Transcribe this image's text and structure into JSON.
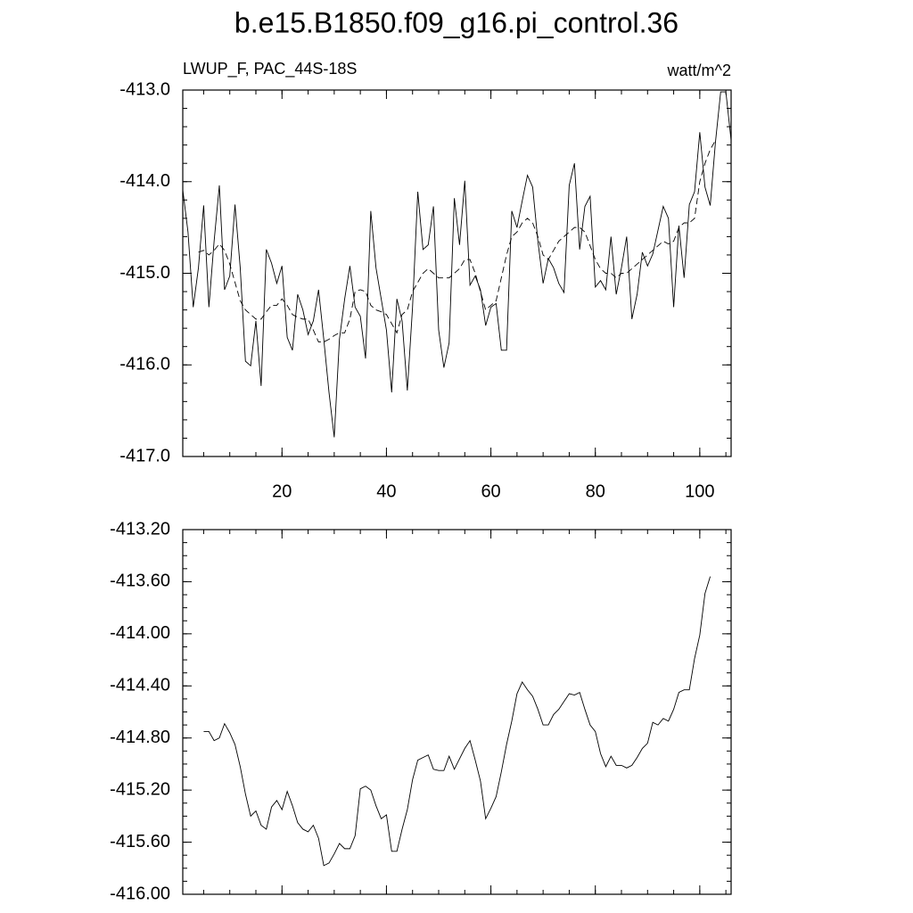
{
  "chart_data": [
    {
      "type": "line",
      "title": "b.e15.B1850.f09_g16.pi_control.36",
      "left_label": "LWUP_F, PAC_44S-18S",
      "right_label": "watt/m^2",
      "x": [
        1,
        2,
        3,
        4,
        5,
        6,
        7,
        8,
        9,
        10,
        11,
        12,
        13,
        14,
        15,
        16,
        17,
        18,
        19,
        20,
        21,
        22,
        23,
        24,
        25,
        26,
        27,
        28,
        29,
        30,
        31,
        32,
        33,
        34,
        35,
        36,
        37,
        38,
        39,
        40,
        41,
        42,
        43,
        44,
        45,
        46,
        47,
        48,
        49,
        50,
        51,
        52,
        53,
        54,
        55,
        56,
        57,
        58,
        59,
        60,
        61,
        62,
        63,
        64,
        65,
        66,
        67,
        68,
        69,
        70,
        71,
        72,
        73,
        74,
        75,
        76,
        77,
        78,
        79,
        80,
        81,
        82,
        83,
        84,
        85,
        86,
        87,
        88,
        89,
        90,
        91,
        92,
        93,
        94,
        95,
        96,
        97,
        98,
        99,
        100,
        101,
        102,
        103,
        104,
        105,
        106
      ],
      "series": [
        {
          "style": "solid",
          "color": "#000000",
          "values": [
            -414.09,
            -414.55,
            -415.37,
            -414.94,
            -414.26,
            -415.37,
            -414.65,
            -414.04,
            -415.18,
            -415.03,
            -414.25,
            -414.94,
            -415.96,
            -416.01,
            -415.52,
            -416.23,
            -414.74,
            -414.89,
            -415.11,
            -414.92,
            -415.7,
            -415.84,
            -415.23,
            -415.4,
            -415.67,
            -415.52,
            -415.18,
            -415.72,
            -416.3,
            -416.79,
            -415.72,
            -415.28,
            -414.92,
            -415.37,
            -415.47,
            -415.93,
            -414.32,
            -414.94,
            -415.28,
            -415.62,
            -416.3,
            -415.28,
            -415.52,
            -416.28,
            -415.37,
            -414.11,
            -414.74,
            -414.69,
            -414.27,
            -415.62,
            -416.03,
            -415.76,
            -414.18,
            -414.69,
            -413.99,
            -415.13,
            -415.03,
            -415.18,
            -415.57,
            -415.37,
            -415.33,
            -415.84,
            -415.84,
            -414.32,
            -414.5,
            -414.21,
            -413.93,
            -414.06,
            -414.65,
            -415.11,
            -414.84,
            -414.94,
            -415.11,
            -415.21,
            -414.04,
            -413.8,
            -414.74,
            -414.27,
            -414.16,
            -415.15,
            -415.08,
            -415.18,
            -414.6,
            -415.23,
            -414.94,
            -414.6,
            -415.5,
            -415.23,
            -414.77,
            -414.92,
            -414.79,
            -414.53,
            -414.27,
            -414.4,
            -415.37,
            -414.48,
            -415.05,
            -414.25,
            -414.11,
            -413.46,
            -414.06,
            -414.26,
            -413.57,
            -413.02,
            -413.02,
            -413.55
          ]
        },
        {
          "style": "dashed",
          "color": "#000000",
          "values": [
            null,
            null,
            null,
            -414.77,
            -414.75,
            -414.8,
            -414.75,
            -414.68,
            -414.75,
            -414.9,
            -415.1,
            -415.3,
            -415.4,
            -415.45,
            -415.5,
            -415.5,
            -415.42,
            -415.35,
            -415.35,
            -415.28,
            -415.35,
            -415.45,
            -415.48,
            -415.5,
            -415.5,
            -415.62,
            -415.75,
            -415.75,
            -415.72,
            -415.68,
            -415.65,
            -415.65,
            -415.5,
            -415.2,
            -415.18,
            -415.2,
            -415.35,
            -415.4,
            -415.42,
            -415.45,
            -415.55,
            -415.65,
            -415.45,
            -415.4,
            -415.2,
            -415.1,
            -415.0,
            -414.95,
            -415.0,
            -415.05,
            -415.05,
            -415.05,
            -415.0,
            -414.95,
            -414.85,
            -414.85,
            -415.0,
            -415.2,
            -415.4,
            -415.35,
            -415.3,
            -415.05,
            -414.8,
            -414.6,
            -414.55,
            -414.45,
            -414.4,
            -414.45,
            -414.6,
            -414.8,
            -414.85,
            -414.75,
            -414.65,
            -414.6,
            -414.55,
            -414.5,
            -414.5,
            -414.55,
            -414.7,
            -414.85,
            -414.95,
            -415.0,
            -415.0,
            -415.05,
            -415.0,
            -415.0,
            -414.95,
            -414.9,
            -414.85,
            -414.8,
            -414.75,
            -414.7,
            -414.65,
            -414.68,
            -414.65,
            -414.5,
            -414.45,
            -414.45,
            -414.4,
            -414.0,
            -413.8,
            -413.65,
            -413.55,
            null,
            null,
            null
          ]
        }
      ],
      "xlim": [
        1,
        106
      ],
      "xticks": [
        20,
        40,
        60,
        80,
        100
      ],
      "xtick_labels": true,
      "xminor_step": 5,
      "ylim": [
        -417,
        -413
      ],
      "yticks": [
        {
          "value": -413,
          "label": "-413.0"
        },
        {
          "value": -414,
          "label": "-414.0"
        },
        {
          "value": -415,
          "label": "-415.0"
        },
        {
          "value": -416,
          "label": "-416.0"
        },
        {
          "value": -417,
          "label": "-417.0"
        }
      ],
      "yminor_step": 0.2
    },
    {
      "type": "line",
      "x": [
        1,
        2,
        3,
        4,
        5,
        6,
        7,
        8,
        9,
        10,
        11,
        12,
        13,
        14,
        15,
        16,
        17,
        18,
        19,
        20,
        21,
        22,
        23,
        24,
        25,
        26,
        27,
        28,
        29,
        30,
        31,
        32,
        33,
        34,
        35,
        36,
        37,
        38,
        39,
        40,
        41,
        42,
        43,
        44,
        45,
        46,
        47,
        48,
        49,
        50,
        51,
        52,
        53,
        54,
        55,
        56,
        57,
        58,
        59,
        60,
        61,
        62,
        63,
        64,
        65,
        66,
        67,
        68,
        69,
        70,
        71,
        72,
        73,
        74,
        75,
        76,
        77,
        78,
        79,
        80,
        81,
        82,
        83,
        84,
        85,
        86,
        87,
        88,
        89,
        90,
        91,
        92,
        93,
        94,
        95,
        96,
        97,
        98,
        99,
        100,
        101,
        102,
        103,
        104,
        105,
        106
      ],
      "series": [
        {
          "style": "solid",
          "color": "#000000",
          "values": [
            null,
            null,
            null,
            null,
            -414.75,
            -414.75,
            -414.82,
            -414.8,
            -414.69,
            -414.76,
            -414.85,
            -415.02,
            -415.23,
            -415.4,
            -415.36,
            -415.47,
            -415.5,
            -415.33,
            -415.28,
            -415.35,
            -415.21,
            -415.32,
            -415.45,
            -415.5,
            -415.52,
            -415.47,
            -415.57,
            -415.78,
            -415.76,
            -415.69,
            -415.61,
            -415.65,
            -415.65,
            -415.55,
            -415.19,
            -415.17,
            -415.2,
            -415.32,
            -415.42,
            -415.39,
            -415.67,
            -415.67,
            -415.5,
            -415.35,
            -415.12,
            -414.97,
            -414.95,
            -414.93,
            -415.04,
            -415.05,
            -415.05,
            -414.94,
            -415.04,
            -414.96,
            -414.88,
            -414.82,
            -414.97,
            -415.13,
            -415.42,
            -415.34,
            -415.25,
            -415.06,
            -414.85,
            -414.67,
            -414.46,
            -414.37,
            -414.43,
            -414.48,
            -414.58,
            -414.7,
            -414.7,
            -414.62,
            -414.58,
            -414.52,
            -414.46,
            -414.47,
            -414.45,
            -414.58,
            -414.7,
            -414.75,
            -414.92,
            -415.02,
            -414.94,
            -415.01,
            -415.01,
            -415.03,
            -415.01,
            -414.95,
            -414.88,
            -414.84,
            -414.68,
            -414.7,
            -414.65,
            -414.67,
            -414.58,
            -414.45,
            -414.43,
            -414.43,
            -414.19,
            -414.01,
            -413.69,
            -413.56,
            null,
            null,
            null,
            null
          ]
        }
      ],
      "xlim": [
        1,
        106
      ],
      "xticks": [
        20,
        40,
        60,
        80,
        100
      ],
      "xtick_labels": false,
      "xminor_step": 5,
      "ylim": [
        -416,
        -413.2
      ],
      "yticks": [
        {
          "value": -413.2,
          "label": "-413.20"
        },
        {
          "value": -413.6,
          "label": "-413.60"
        },
        {
          "value": -414,
          "label": "-414.00"
        },
        {
          "value": -414.4,
          "label": "-414.40"
        },
        {
          "value": -414.8,
          "label": "-414.80"
        },
        {
          "value": -415.2,
          "label": "-415.20"
        },
        {
          "value": -415.6,
          "label": "-415.60"
        },
        {
          "value": -416,
          "label": "-416.00"
        }
      ],
      "yminor_step": 0.1
    }
  ]
}
